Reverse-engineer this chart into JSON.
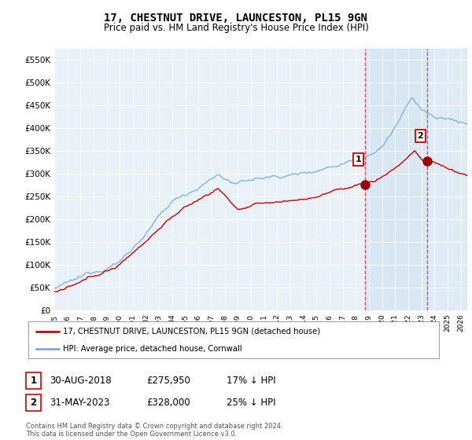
{
  "title": "17, CHESTNUT DRIVE, LAUNCESTON, PL15 9GN",
  "subtitle": "Price paid vs. HM Land Registry's House Price Index (HPI)",
  "legend_line1": "17, CHESTNUT DRIVE, LAUNCESTON, PL15 9GN (detached house)",
  "legend_line2": "HPI: Average price, detached house, Cornwall",
  "sale1_label": "1",
  "sale1_date": "30-AUG-2018",
  "sale1_price": "£275,950",
  "sale1_hpi": "17% ↓ HPI",
  "sale1_year": 2018.67,
  "sale1_value": 275950,
  "sale2_label": "2",
  "sale2_date": "31-MAY-2023",
  "sale2_price": "£328,000",
  "sale2_hpi": "25% ↓ HPI",
  "sale2_year": 2023.42,
  "sale2_value": 328000,
  "footnote": "Contains HM Land Registry data © Crown copyright and database right 2024.\nThis data is licensed under the Open Government Licence v3.0.",
  "ylim": [
    0,
    575000
  ],
  "xlim_start": 1995,
  "xlim_end": 2026.5,
  "hpi_color": "#7aadd4",
  "price_color": "#cc0000",
  "bg_color": "#e8f0f8",
  "plot_bg": "#ffffff",
  "sale_marker_color": "#990000",
  "vline_color": "#cc3333",
  "shade_color": "#cce0f0",
  "grid_color": "#ffffff"
}
